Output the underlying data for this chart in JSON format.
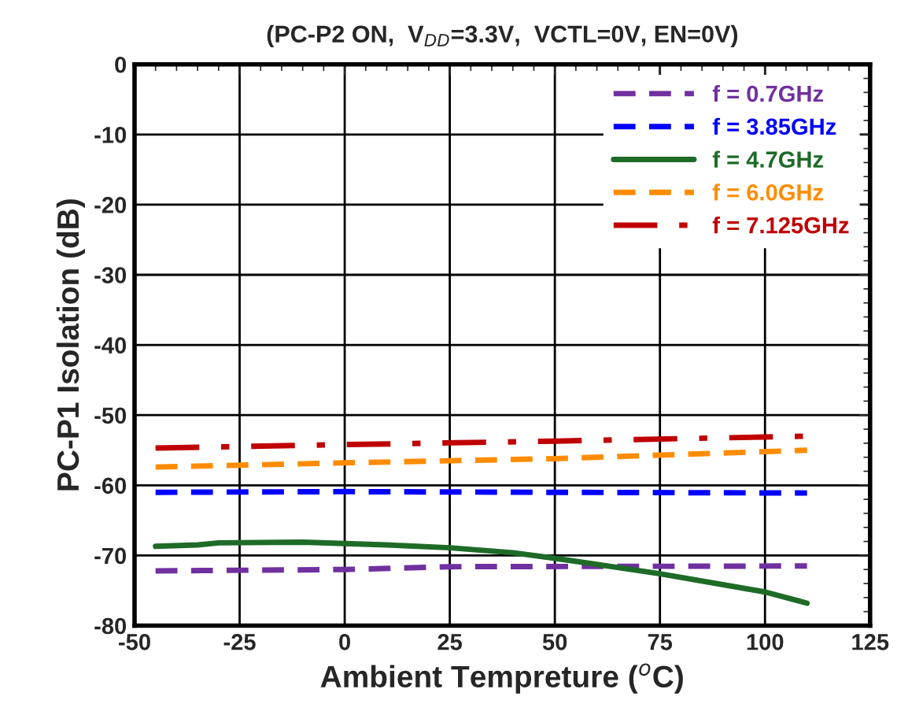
{
  "chart_data": {
    "type": "line",
    "title": "(PC-P2 ON,  V$_{DD}$=3.3V,  VCTL=0V, EN=0V)",
    "xlabel": "Ambient Tempreture ($^{o}$C)",
    "ylabel": "PC-P1 Isolation (dB)",
    "xlim": [
      -50,
      125
    ],
    "xticks": [
      -50,
      -25,
      0,
      25,
      50,
      75,
      100,
      125
    ],
    "ylim": [
      -80,
      0
    ],
    "yticks": [
      -80,
      -70,
      -60,
      -50,
      -40,
      -30,
      -20,
      -10,
      0
    ],
    "grid": true,
    "legend": "top right",
    "marker": "none",
    "series": [
      {
        "name": "f = 0.7GHz",
        "color": "#7030a0",
        "line_style": "dashed",
        "x": [
          -45,
          0,
          25,
          110
        ],
        "values": [
          -72.2,
          -72.0,
          -71.6,
          -71.5
        ]
      },
      {
        "name": "f = 3.85GHz",
        "color": "#0000ff",
        "line_style": "dashed",
        "x": [
          -45,
          0,
          50,
          110
        ],
        "values": [
          -61.0,
          -60.9,
          -61.0,
          -61.1
        ]
      },
      {
        "name": "f = 4.7GHz",
        "color": "#1e6b28",
        "line_style": "solid",
        "x": [
          -45,
          -35,
          -30,
          -10,
          0,
          10,
          25,
          40,
          50,
          75,
          100,
          110
        ],
        "values": [
          -68.7,
          -68.5,
          -68.2,
          -68.1,
          -68.3,
          -68.5,
          -68.9,
          -69.6,
          -70.4,
          -72.6,
          -75.2,
          -76.8
        ]
      },
      {
        "name": "f = 6.0GHz",
        "color": "#ff8c00",
        "line_style": "dashed",
        "x": [
          -45,
          0,
          50,
          110
        ],
        "values": [
          -57.4,
          -56.8,
          -56.2,
          -55.0
        ]
      },
      {
        "name": "f = 7.125GHz",
        "color": "#c00000",
        "line_style": "dashdot",
        "x": [
          -45,
          0,
          50,
          110
        ],
        "values": [
          -54.7,
          -54.2,
          -53.7,
          -53.0
        ]
      }
    ]
  }
}
